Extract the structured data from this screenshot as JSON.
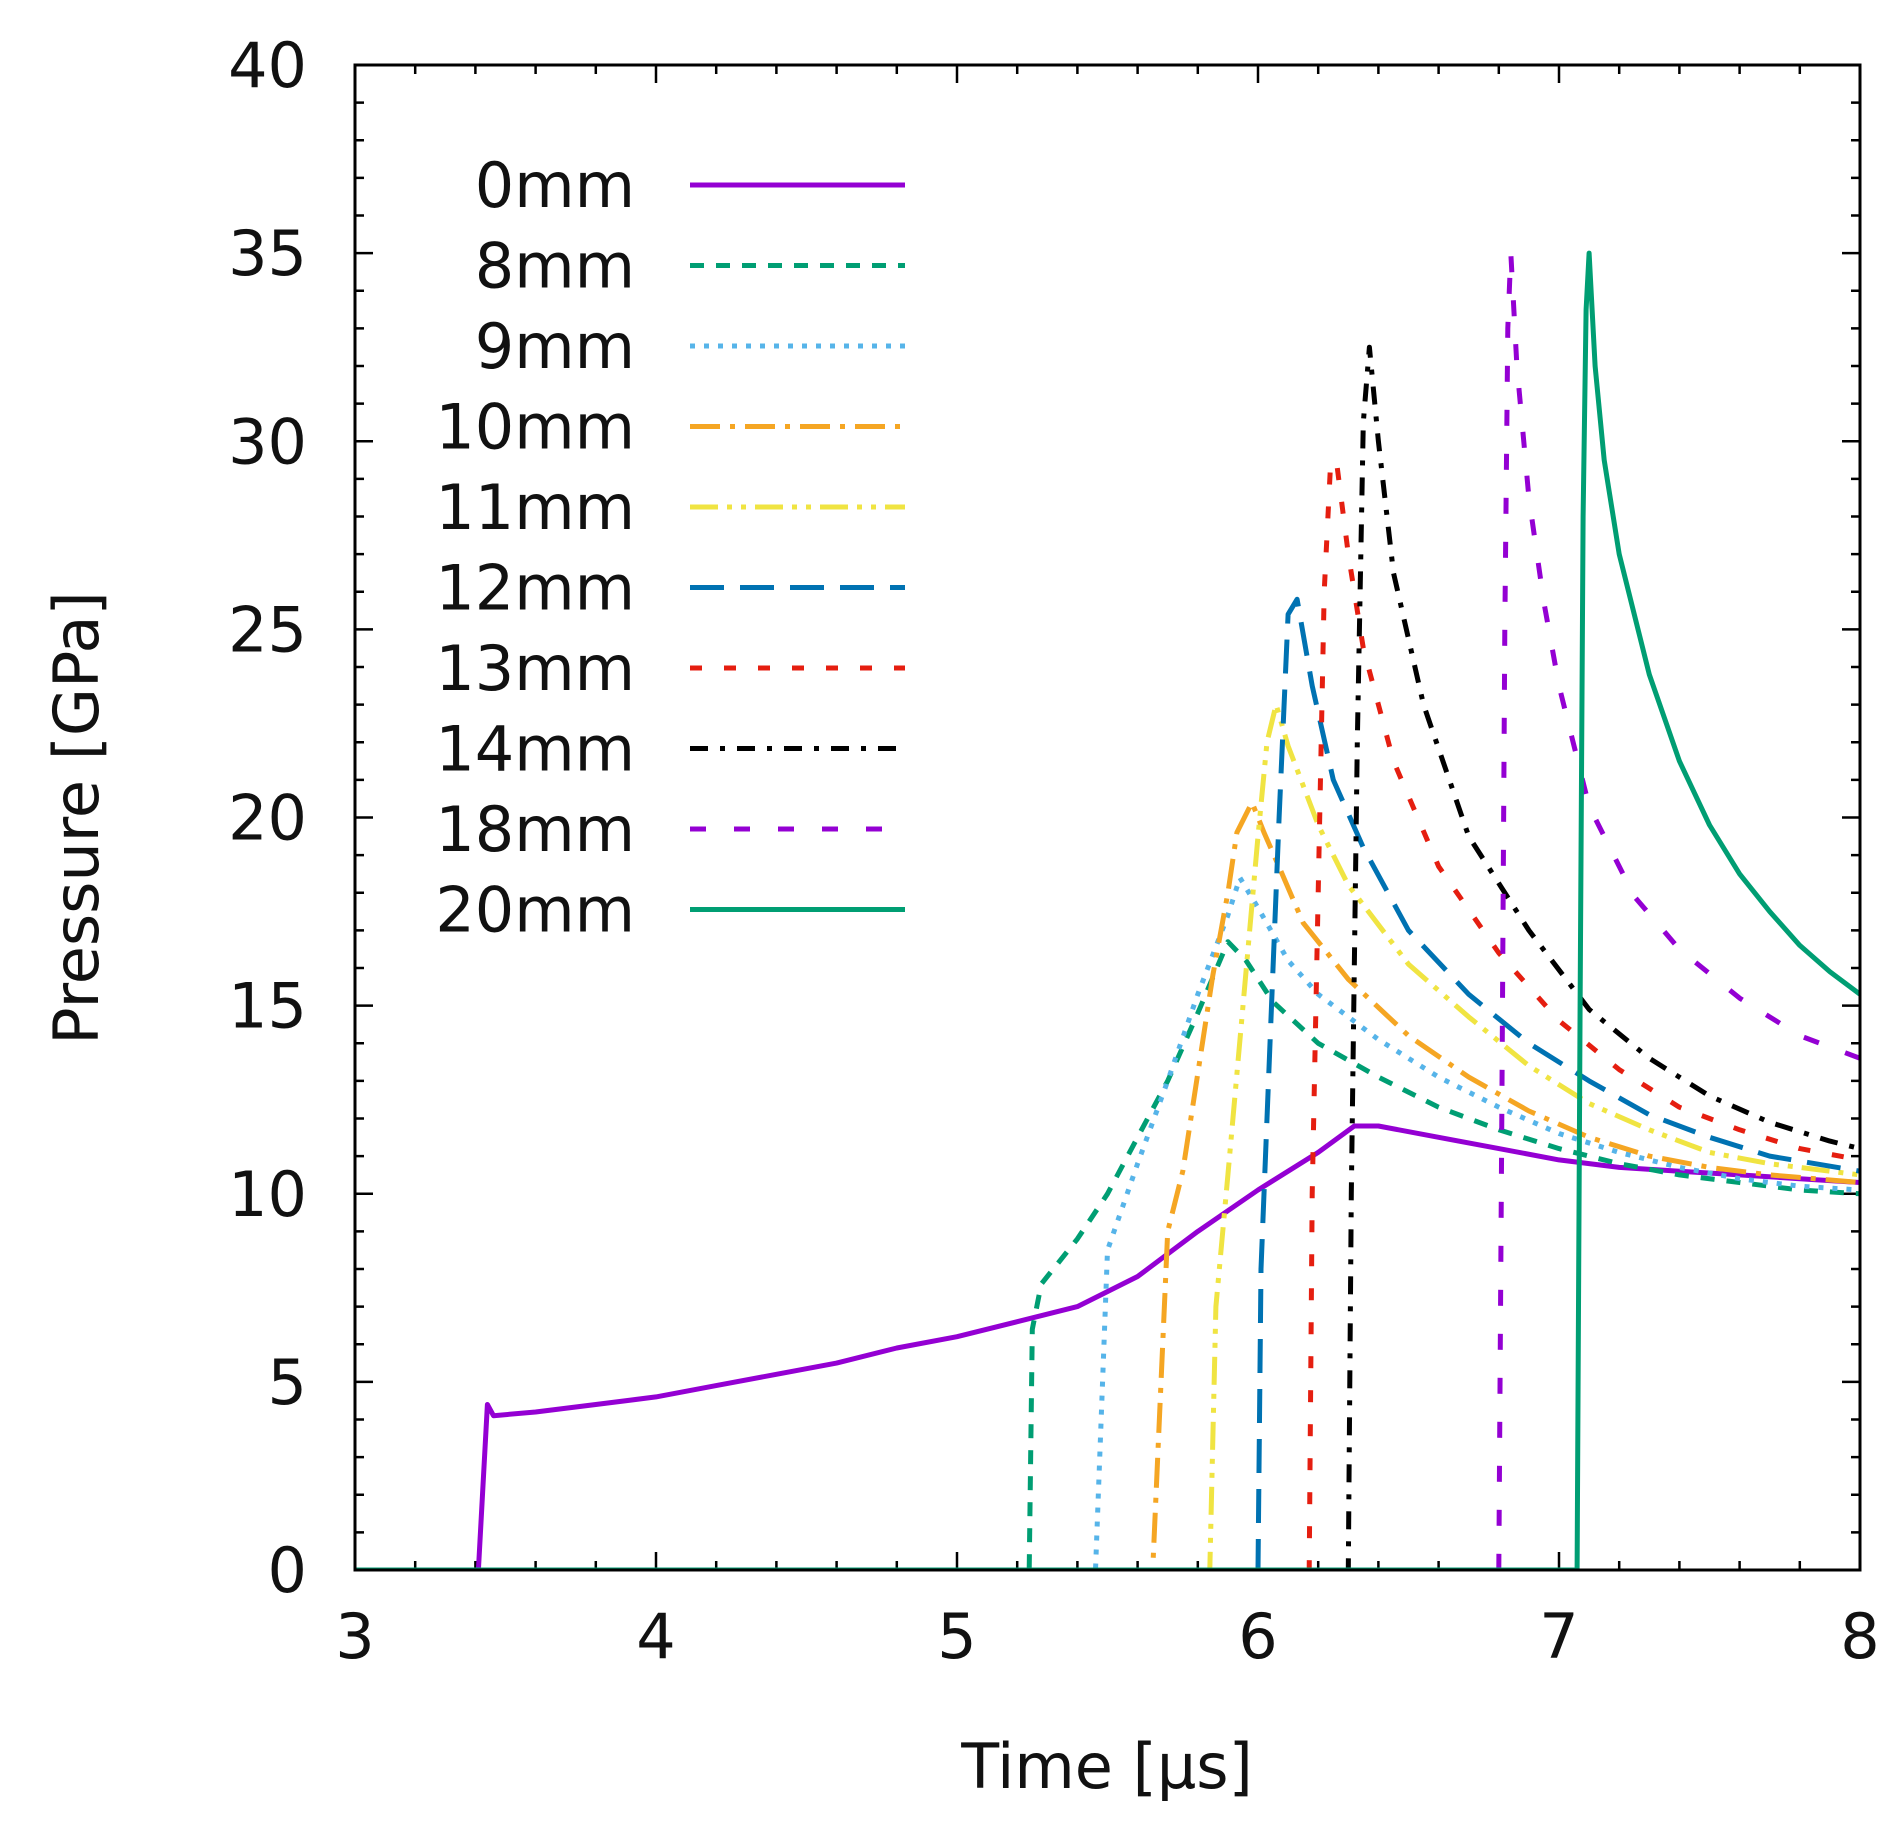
{
  "chart_data": {
    "type": "line",
    "title": "",
    "xlabel": "Time [μs]",
    "ylabel": "Pressure [GPa]",
    "xlim": [
      3,
      8
    ],
    "ylim": [
      0,
      40
    ],
    "xticks": [
      3,
      4,
      5,
      6,
      7,
      8
    ],
    "yticks": [
      0,
      5,
      10,
      15,
      20,
      25,
      30,
      35,
      40
    ],
    "grid": false,
    "legend_position": "top-left",
    "series": [
      {
        "name": "0mm",
        "color": "#9400d3",
        "dash": "solid",
        "points": [
          [
            3,
            0
          ],
          [
            3.41,
            0
          ],
          [
            3.44,
            4.4
          ],
          [
            3.46,
            4.1
          ],
          [
            3.6,
            4.2
          ],
          [
            3.8,
            4.4
          ],
          [
            4.0,
            4.6
          ],
          [
            4.2,
            4.9
          ],
          [
            4.4,
            5.2
          ],
          [
            4.6,
            5.5
          ],
          [
            4.8,
            5.9
          ],
          [
            5.0,
            6.2
          ],
          [
            5.2,
            6.6
          ],
          [
            5.4,
            7.0
          ],
          [
            5.6,
            7.8
          ],
          [
            5.8,
            9.0
          ],
          [
            6.0,
            10.1
          ],
          [
            6.2,
            11.1
          ],
          [
            6.32,
            11.8
          ],
          [
            6.4,
            11.8
          ],
          [
            6.6,
            11.5
          ],
          [
            6.8,
            11.2
          ],
          [
            7.0,
            10.9
          ],
          [
            7.2,
            10.7
          ],
          [
            7.4,
            10.6
          ],
          [
            7.6,
            10.5
          ],
          [
            7.8,
            10.4
          ],
          [
            8.0,
            10.3
          ]
        ]
      },
      {
        "name": "8mm",
        "color": "#009e73",
        "dash": "dashed",
        "points": [
          [
            3,
            0
          ],
          [
            5.24,
            0
          ],
          [
            5.25,
            6.4
          ],
          [
            5.28,
            7.6
          ],
          [
            5.4,
            8.8
          ],
          [
            5.5,
            10.0
          ],
          [
            5.6,
            11.5
          ],
          [
            5.7,
            13.0
          ],
          [
            5.8,
            14.8
          ],
          [
            5.9,
            16.7
          ],
          [
            5.96,
            16.2
          ],
          [
            6.05,
            15.1
          ],
          [
            6.2,
            14.0
          ],
          [
            6.4,
            13.1
          ],
          [
            6.6,
            12.3
          ],
          [
            6.8,
            11.7
          ],
          [
            7.0,
            11.2
          ],
          [
            7.2,
            10.8
          ],
          [
            7.4,
            10.5
          ],
          [
            7.6,
            10.3
          ],
          [
            7.8,
            10.1
          ],
          [
            8.0,
            10.0
          ]
        ]
      },
      {
        "name": "9mm",
        "color": "#56b4e9",
        "dash": "dotted",
        "points": [
          [
            3,
            0
          ],
          [
            5.46,
            0
          ],
          [
            5.5,
            8.5
          ],
          [
            5.6,
            10.8
          ],
          [
            5.7,
            13.0
          ],
          [
            5.8,
            15.3
          ],
          [
            5.9,
            17.4
          ],
          [
            5.94,
            18.4
          ],
          [
            6.0,
            17.6
          ],
          [
            6.1,
            16.2
          ],
          [
            6.2,
            15.3
          ],
          [
            6.4,
            14.1
          ],
          [
            6.6,
            13.1
          ],
          [
            6.8,
            12.3
          ],
          [
            7.0,
            11.6
          ],
          [
            7.2,
            11.1
          ],
          [
            7.4,
            10.7
          ],
          [
            7.6,
            10.4
          ],
          [
            7.8,
            10.2
          ],
          [
            8.0,
            10.1
          ]
        ]
      },
      {
        "name": "10mm",
        "color": "#f5a623",
        "dash": "dashdot",
        "points": [
          [
            3,
            0
          ],
          [
            5.65,
            0
          ],
          [
            5.7,
            9.0
          ],
          [
            5.75,
            10.6
          ],
          [
            5.8,
            13.2
          ],
          [
            5.85,
            15.8
          ],
          [
            5.9,
            18.0
          ],
          [
            5.93,
            19.6
          ],
          [
            5.98,
            20.4
          ],
          [
            6.02,
            19.6
          ],
          [
            6.08,
            18.5
          ],
          [
            6.15,
            17.2
          ],
          [
            6.3,
            15.7
          ],
          [
            6.5,
            14.2
          ],
          [
            6.7,
            13.1
          ],
          [
            6.9,
            12.2
          ],
          [
            7.1,
            11.5
          ],
          [
            7.3,
            11.0
          ],
          [
            7.5,
            10.7
          ],
          [
            7.7,
            10.5
          ],
          [
            8.0,
            10.3
          ]
        ]
      },
      {
        "name": "11mm",
        "color": "#f0e442",
        "dash": "dashdotdot",
        "points": [
          [
            3,
            0
          ],
          [
            5.84,
            0
          ],
          [
            5.86,
            7.0
          ],
          [
            5.9,
            10.5
          ],
          [
            5.95,
            15.0
          ],
          [
            6.0,
            19.5
          ],
          [
            6.03,
            22.0
          ],
          [
            6.06,
            23.0
          ],
          [
            6.1,
            21.9
          ],
          [
            6.2,
            19.8
          ],
          [
            6.3,
            18.2
          ],
          [
            6.5,
            16.1
          ],
          [
            6.7,
            14.7
          ],
          [
            6.9,
            13.4
          ],
          [
            7.1,
            12.4
          ],
          [
            7.3,
            11.7
          ],
          [
            7.5,
            11.1
          ],
          [
            7.7,
            10.8
          ],
          [
            8.0,
            10.5
          ]
        ]
      },
      {
        "name": "12mm",
        "color": "#0072b2",
        "dash": "longdash",
        "points": [
          [
            3,
            0
          ],
          [
            6.0,
            0
          ],
          [
            6.01,
            8.0
          ],
          [
            6.04,
            14.0
          ],
          [
            6.07,
            20.0
          ],
          [
            6.1,
            25.4
          ],
          [
            6.13,
            25.8
          ],
          [
            6.18,
            23.5
          ],
          [
            6.25,
            21.0
          ],
          [
            6.35,
            19.2
          ],
          [
            6.5,
            17.0
          ],
          [
            6.7,
            15.3
          ],
          [
            6.9,
            14.0
          ],
          [
            7.1,
            13.0
          ],
          [
            7.3,
            12.1
          ],
          [
            7.5,
            11.5
          ],
          [
            7.7,
            11.0
          ],
          [
            8.0,
            10.6
          ]
        ]
      },
      {
        "name": "13mm",
        "color": "#e51e10",
        "dash": "sparsedash",
        "points": [
          [
            3,
            0
          ],
          [
            6.17,
            0
          ],
          [
            6.18,
            10.0
          ],
          [
            6.2,
            18.0
          ],
          [
            6.22,
            26.0
          ],
          [
            6.24,
            29.2
          ],
          [
            6.26,
            29.5
          ],
          [
            6.3,
            27.0
          ],
          [
            6.35,
            24.5
          ],
          [
            6.45,
            21.5
          ],
          [
            6.6,
            18.7
          ],
          [
            6.8,
            16.4
          ],
          [
            7.0,
            14.6
          ],
          [
            7.2,
            13.3
          ],
          [
            7.4,
            12.3
          ],
          [
            7.6,
            11.7
          ],
          [
            7.8,
            11.2
          ],
          [
            8.0,
            10.9
          ]
        ]
      },
      {
        "name": "14mm",
        "color": "#000000",
        "dash": "dashdotsparse",
        "points": [
          [
            3,
            0
          ],
          [
            6.3,
            0
          ],
          [
            6.31,
            10.0
          ],
          [
            6.33,
            22.0
          ],
          [
            6.35,
            30.5
          ],
          [
            6.37,
            32.5
          ],
          [
            6.4,
            30.0
          ],
          [
            6.45,
            26.5
          ],
          [
            6.55,
            23.0
          ],
          [
            6.7,
            19.5
          ],
          [
            6.9,
            17.0
          ],
          [
            7.1,
            14.9
          ],
          [
            7.3,
            13.6
          ],
          [
            7.5,
            12.6
          ],
          [
            7.7,
            11.9
          ],
          [
            7.9,
            11.4
          ],
          [
            8.0,
            11.2
          ]
        ]
      },
      {
        "name": "18mm",
        "color": "#9400d3",
        "dash": "widedash",
        "points": [
          [
            3,
            0
          ],
          [
            6.8,
            0
          ],
          [
            6.81,
            12.0
          ],
          [
            6.82,
            25.0
          ],
          [
            6.83,
            33.0
          ],
          [
            6.84,
            35.0
          ],
          [
            6.86,
            32.0
          ],
          [
            6.9,
            28.5
          ],
          [
            6.95,
            25.7
          ],
          [
            7.0,
            23.5
          ],
          [
            7.1,
            20.3
          ],
          [
            7.25,
            17.9
          ],
          [
            7.4,
            16.5
          ],
          [
            7.6,
            15.2
          ],
          [
            7.8,
            14.2
          ],
          [
            8.0,
            13.6
          ]
        ]
      },
      {
        "name": "20mm",
        "color": "#009e73",
        "dash": "solid",
        "points": [
          [
            3,
            0
          ],
          [
            7.06,
            0
          ],
          [
            7.07,
            15.0
          ],
          [
            7.08,
            28.0
          ],
          [
            7.09,
            33.5
          ],
          [
            7.1,
            35.0
          ],
          [
            7.12,
            32.0
          ],
          [
            7.15,
            29.5
          ],
          [
            7.2,
            27.0
          ],
          [
            7.3,
            23.8
          ],
          [
            7.4,
            21.5
          ],
          [
            7.5,
            19.8
          ],
          [
            7.6,
            18.5
          ],
          [
            7.7,
            17.5
          ],
          [
            7.8,
            16.6
          ],
          [
            7.9,
            15.9
          ],
          [
            8.0,
            15.3
          ]
        ]
      }
    ]
  }
}
